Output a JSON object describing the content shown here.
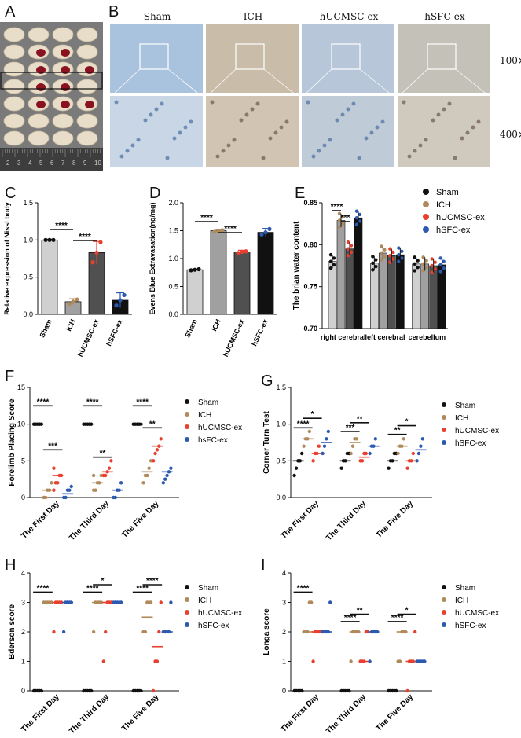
{
  "panel_letters": {
    "A": "A",
    "B": "B",
    "C": "C",
    "D": "D",
    "E": "E",
    "F": "F",
    "G": "G",
    "H": "H",
    "I": "I"
  },
  "histology": {
    "columns": [
      "Sham",
      "ICH",
      "hUCMSC-ex",
      "hSFC-ex"
    ],
    "magnifications": [
      "100×",
      "400×"
    ]
  },
  "ruler_numbers": [
    "2",
    "3",
    "4",
    "5",
    "6",
    "7",
    "8",
    "9",
    "10"
  ],
  "colors": {
    "sham": "#111111",
    "ich": "#b08a5a",
    "hucmsc": "#e8402e",
    "hsfc": "#2c5ab0",
    "bar_sham": "#d0d0d0",
    "bar_ich": "#a0a0a0",
    "bar_huc": "#505050",
    "bar_hsfc": "#111111"
  },
  "chart_data": [
    {
      "panel": "C",
      "type": "bar",
      "categories": [
        "Sham",
        "ICH",
        "hUCMSC-ex",
        "hSFC-ex"
      ],
      "values": [
        1.0,
        0.17,
        0.83,
        0.19
      ],
      "errors": [
        0.01,
        0.04,
        0.15,
        0.1
      ],
      "points": [
        [
          1.0,
          1.0,
          1.0
        ],
        [
          0.14,
          0.17,
          0.2
        ],
        [
          0.7,
          0.83,
          0.97
        ],
        [
          0.12,
          0.19,
          0.26
        ]
      ],
      "ylabel": "Relative expression of Nissl body",
      "ylim": [
        0,
        1.5
      ],
      "yticks": [
        "0.0",
        "0.5",
        "1.0",
        "1.5"
      ],
      "significance": [
        {
          "from": 0,
          "to": 1,
          "label": "****"
        },
        {
          "from": 1,
          "to": 2,
          "label": "****"
        }
      ]
    },
    {
      "panel": "D",
      "type": "bar",
      "categories": [
        "Sham",
        "ICH",
        "hUCMSC-ex",
        "hSFC-ex"
      ],
      "values": [
        0.8,
        1.5,
        1.12,
        1.47
      ],
      "errors": [
        0.01,
        0.02,
        0.03,
        0.07
      ],
      "points": [
        [
          0.79,
          0.8,
          0.81
        ],
        [
          1.48,
          1.5,
          1.51
        ],
        [
          1.1,
          1.12,
          1.13
        ],
        [
          1.43,
          1.47,
          1.53
        ]
      ],
      "ylabel": "Evens Blue Extravasation(ng/mg)",
      "ylim": [
        0,
        2.0
      ],
      "yticks": [
        "0.0",
        "0.5",
        "1.0",
        "1.5",
        "2.0"
      ],
      "significance": [
        {
          "from": 0,
          "to": 1,
          "label": "****"
        },
        {
          "from": 1,
          "to": 2,
          "label": "****"
        }
      ]
    },
    {
      "panel": "E",
      "type": "bar",
      "groups": [
        "right cerebral",
        "left cerebral",
        "cerebellum"
      ],
      "series": [
        {
          "name": "Sham",
          "values": [
            0.78,
            0.778,
            0.777
          ]
        },
        {
          "name": "ICH",
          "values": [
            0.829,
            0.79,
            0.777
          ]
        },
        {
          "name": "hUCMSC-ex",
          "values": [
            0.795,
            0.787,
            0.775
          ]
        },
        {
          "name": "hSFC-ex",
          "values": [
            0.832,
            0.788,
            0.776
          ]
        }
      ],
      "ylabel": "The brian water content",
      "ylim": [
        0.7,
        0.85
      ],
      "yticks": [
        "0.70",
        "0.75",
        "0.80",
        "0.85"
      ],
      "significance": [
        {
          "group": 0,
          "from": 0,
          "to": 1,
          "label": "****"
        },
        {
          "group": 0,
          "from": 1,
          "to": 2,
          "label": "***"
        }
      ]
    },
    {
      "panel": "F",
      "type": "scatter",
      "groups": [
        "The First Day",
        "The Third Day",
        "The Five Day"
      ],
      "series": [
        {
          "name": "Sham",
          "values": [
            [
              10,
              10,
              10,
              10,
              10
            ],
            [
              10,
              10,
              10,
              10,
              10
            ],
            [
              10,
              10,
              10,
              10,
              10
            ]
          ],
          "means": [
            10,
            10,
            10
          ]
        },
        {
          "name": "ICH",
          "values": [
            [
              0,
              0,
              1,
              1,
              2
            ],
            [
              1,
              1,
              2,
              2,
              3,
              3
            ],
            [
              2,
              3,
              3,
              4,
              5
            ]
          ],
          "means": [
            1,
            2,
            3.5
          ]
        },
        {
          "name": "hUCMSC-ex",
          "values": [
            [
              1,
              2,
              2,
              3,
              3,
              4
            ],
            [
              3,
              3,
              3.5,
              4,
              5
            ],
            [
              5,
              6,
              6.5,
              7,
              8
            ]
          ],
          "means": [
            3,
            3.5,
            7
          ]
        },
        {
          "name": "hsFC-ex",
          "values": [
            [
              0,
              0,
              1,
              1,
              1.5
            ],
            [
              0,
              0,
              1,
              1,
              2
            ],
            [
              2,
              2.5,
              3,
              3.5,
              4
            ]
          ],
          "means": [
            0.5,
            1,
            3.5
          ]
        }
      ],
      "ylabel": "Forelimb Placing Score",
      "ylim": [
        0,
        15
      ],
      "yticks": [
        "0",
        "5",
        "10",
        "15"
      ],
      "significance": [
        {
          "group": 0,
          "from": 0,
          "to": 1,
          "label": "****",
          "y": 12.5
        },
        {
          "group": 0,
          "from": 1,
          "to": 2,
          "label": "***",
          "y": 6.5
        },
        {
          "group": 1,
          "from": 0,
          "to": 1,
          "label": "****",
          "y": 12.5
        },
        {
          "group": 1,
          "from": 1,
          "to": 2,
          "label": "**",
          "y": 5.5
        },
        {
          "group": 2,
          "from": 0,
          "to": 1,
          "label": "****",
          "y": 12.5
        },
        {
          "group": 2,
          "from": 1,
          "to": 2,
          "label": "**",
          "y": 9.5
        }
      ]
    },
    {
      "panel": "G",
      "type": "scatter",
      "groups": [
        "The First Day",
        "The Third Day",
        "The Five Day"
      ],
      "series": [
        {
          "name": "Sham",
          "values": [
            [
              0.3,
              0.4,
              0.5,
              0.5,
              0.6
            ],
            [
              0.4,
              0.5,
              0.5,
              0.6,
              0.6
            ],
            [
              0.4,
              0.5,
              0.5,
              0.6,
              0.6
            ]
          ],
          "means": [
            0.5,
            0.5,
            0.5
          ]
        },
        {
          "name": "ICH",
          "values": [
            [
              0.7,
              0.8,
              0.8,
              0.9
            ],
            [
              0.6,
              0.7,
              0.8,
              0.8
            ],
            [
              0.6,
              0.7,
              0.7,
              0.8
            ]
          ],
          "means": [
            0.8,
            0.75,
            0.7
          ]
        },
        {
          "name": "hUCMSC-ex",
          "values": [
            [
              0.5,
              0.6,
              0.6,
              0.7
            ],
            [
              0.5,
              0.5,
              0.6,
              0.6
            ],
            [
              0.4,
              0.5,
              0.5,
              0.6
            ]
          ],
          "means": [
            0.6,
            0.55,
            0.5
          ]
        },
        {
          "name": "hSFC-ex",
          "values": [
            [
              0.6,
              0.7,
              0.8,
              0.9
            ],
            [
              0.6,
              0.7,
              0.7,
              0.8
            ],
            [
              0.5,
              0.6,
              0.7,
              0.8
            ]
          ],
          "means": [
            0.75,
            0.7,
            0.65
          ]
        }
      ],
      "ylabel": "Corner Turn Test",
      "ylim": [
        0,
        1.5
      ],
      "yticks": [
        "0.0",
        "0.5",
        "1.0",
        "1.5"
      ],
      "significance": [
        {
          "group": 0,
          "from": 0,
          "to": 1,
          "label": "****",
          "y": 0.95
        },
        {
          "group": 0,
          "from": 1,
          "to": 2,
          "label": "*",
          "y": 1.08
        },
        {
          "group": 1,
          "from": 0,
          "to": 1,
          "label": "***",
          "y": 0.9
        },
        {
          "group": 1,
          "from": 1,
          "to": 2,
          "label": "**",
          "y": 1.02
        },
        {
          "group": 2,
          "from": 0,
          "to": 1,
          "label": "**",
          "y": 0.86
        },
        {
          "group": 2,
          "from": 1,
          "to": 2,
          "label": "*",
          "y": 0.98
        }
      ]
    },
    {
      "panel": "H",
      "type": "scatter",
      "groups": [
        "The First Day",
        "The Third Day",
        "The Five Day"
      ],
      "series": [
        {
          "name": "Sham",
          "values": [
            [
              0,
              0,
              0,
              0,
              0
            ],
            [
              0,
              0,
              0,
              0,
              0
            ],
            [
              0,
              0,
              0,
              0,
              0
            ]
          ],
          "means": [
            0,
            0,
            0
          ]
        },
        {
          "name": "ICH",
          "values": [
            [
              3,
              3,
              3,
              3,
              3
            ],
            [
              2,
              3,
              3,
              3,
              3
            ],
            [
              2,
              2,
              3,
              3,
              3
            ]
          ],
          "means": [
            3,
            3,
            2.5
          ]
        },
        {
          "name": "hUCMSC-ex",
          "values": [
            [
              2,
              3,
              3,
              3,
              3
            ],
            [
              1,
              2,
              3,
              3,
              3
            ],
            [
              0,
              1,
              1,
              2,
              3
            ]
          ],
          "means": [
            3,
            3,
            1.5
          ]
        },
        {
          "name": "hSFC-ex",
          "values": [
            [
              2,
              3,
              3,
              3,
              3
            ],
            [
              3,
              3,
              3,
              3,
              3
            ],
            [
              2,
              2,
              2,
              2,
              3
            ]
          ],
          "means": [
            3,
            3,
            2
          ]
        }
      ],
      "ylabel": "Bderson score",
      "ylim": [
        0,
        4
      ],
      "yticks": [
        "0",
        "1",
        "2",
        "3",
        "4"
      ],
      "significance": [
        {
          "group": 0,
          "from": 0,
          "to": 1,
          "label": "****",
          "y": 3.35
        },
        {
          "group": 1,
          "from": 0,
          "to": 1,
          "label": "****",
          "y": 3.35
        },
        {
          "group": 1,
          "from": 1,
          "to": 2,
          "label": "*",
          "y": 3.6
        },
        {
          "group": 2,
          "from": 0,
          "to": 1,
          "label": "****",
          "y": 3.35
        },
        {
          "group": 2,
          "from": 1,
          "to": 2,
          "label": "****",
          "y": 3.6
        }
      ]
    },
    {
      "panel": "I",
      "type": "scatter",
      "groups": [
        "The First Day",
        "The Third Day",
        "The Five Day"
      ],
      "series": [
        {
          "name": "Sham",
          "values": [
            [
              0,
              0,
              0,
              0,
              0
            ],
            [
              0,
              0,
              0,
              0,
              0
            ],
            [
              0,
              0,
              0,
              0,
              0
            ]
          ],
          "means": [
            0,
            0,
            0
          ]
        },
        {
          "name": "ICH",
          "values": [
            [
              2,
              2,
              2,
              3,
              3
            ],
            [
              1,
              2,
              2,
              2,
              2
            ],
            [
              1,
              1,
              2,
              2,
              2
            ]
          ],
          "means": [
            2,
            2,
            2
          ]
        },
        {
          "name": "hUCMSC-ex",
          "values": [
            [
              1,
              2,
              2,
              2,
              2
            ],
            [
              1,
              1,
              1,
              2,
              2
            ],
            [
              0,
              1,
              1,
              1,
              2
            ]
          ],
          "means": [
            2,
            1,
            1
          ]
        },
        {
          "name": "hSFC-ex",
          "values": [
            [
              2,
              2,
              2,
              2,
              3
            ],
            [
              1,
              2,
              2,
              2,
              2
            ],
            [
              1,
              1,
              1,
              1,
              1
            ]
          ],
          "means": [
            2,
            2,
            1
          ]
        }
      ],
      "ylabel": "Longa score",
      "ylim": [
        0,
        4
      ],
      "yticks": [
        "0",
        "1",
        "2",
        "3",
        "4"
      ],
      "significance": [
        {
          "group": 0,
          "from": 0,
          "to": 1,
          "label": "****",
          "y": 3.35
        },
        {
          "group": 1,
          "from": 0,
          "to": 1,
          "label": "****",
          "y": 2.35
        },
        {
          "group": 1,
          "from": 1,
          "to": 2,
          "label": "**",
          "y": 2.6
        },
        {
          "group": 2,
          "from": 0,
          "to": 1,
          "label": "****",
          "y": 2.35
        },
        {
          "group": 2,
          "from": 1,
          "to": 2,
          "label": "*",
          "y": 2.6
        }
      ]
    }
  ]
}
